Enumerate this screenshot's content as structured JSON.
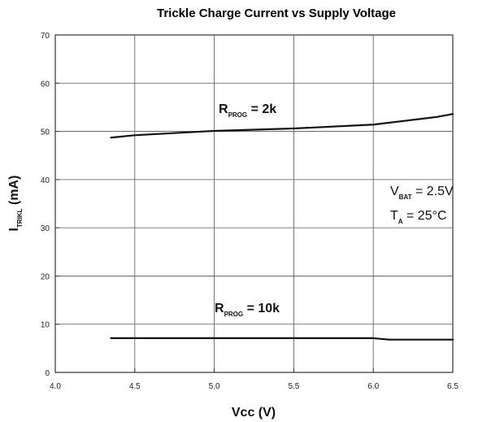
{
  "chart_data": {
    "type": "line",
    "title": "Trickle Charge Current vs Supply Voltage",
    "xlabel": "Vcc (V)",
    "ylabel": {
      "main": "I",
      "subscript": "TRIKL",
      "suffix": " (mA)"
    },
    "xlim": [
      4.0,
      6.5
    ],
    "ylim": [
      0,
      70
    ],
    "xticks": [
      4.0,
      4.5,
      5.0,
      5.5,
      6.0,
      6.5
    ],
    "xtick_labels": [
      "4.0",
      "4.5",
      "5.0",
      "5.5",
      "6.0",
      "6.5"
    ],
    "yticks": [
      0,
      10,
      20,
      30,
      40,
      50,
      60,
      70
    ],
    "ytick_labels": [
      "0",
      "10",
      "20",
      "30",
      "40",
      "50",
      "60",
      "70"
    ],
    "grid": true,
    "series": [
      {
        "name": {
          "main": "R",
          "subscript": "PROG",
          "suffix": " = 2k"
        },
        "color": "#111111",
        "x": [
          4.35,
          4.5,
          5.0,
          5.5,
          6.0,
          6.2,
          6.4,
          6.5
        ],
        "y": [
          48.7,
          49.2,
          50.1,
          50.6,
          51.4,
          52.2,
          53.0,
          53.6
        ]
      },
      {
        "name": {
          "main": "R",
          "subscript": "PROG",
          "suffix": " = 10k"
        },
        "color": "#111111",
        "x": [
          4.35,
          5.0,
          5.5,
          6.0,
          6.1,
          6.5
        ],
        "y": [
          7.1,
          7.1,
          7.1,
          7.1,
          6.8,
          6.8
        ]
      }
    ],
    "annotations": [
      {
        "main": "V",
        "subscript": "BAT",
        "suffix": " = 2.5V"
      },
      {
        "main": "T",
        "subscript": "A",
        "suffix": " = 25°C"
      }
    ]
  }
}
